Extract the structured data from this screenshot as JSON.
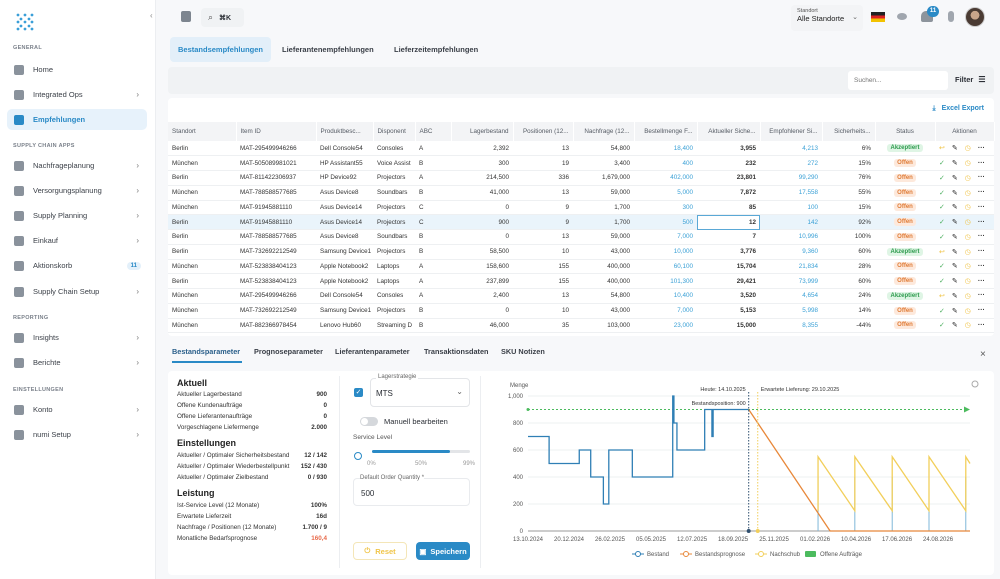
{
  "sidebar": {
    "sections": [
      "GENERAL",
      "SUPPLY CHAIN APPS",
      "REPORTING",
      "EINSTELLUNGEN"
    ],
    "items": [
      {
        "label": "Home",
        "icon": "home-icon"
      },
      {
        "label": "Integrated Ops",
        "icon": "ops-icon",
        "chevron": true
      },
      {
        "label": "Empfehlungen",
        "icon": "recommendations-icon",
        "active": true
      },
      {
        "label": "Nachfrageplanung",
        "icon": "demand-icon",
        "chevron": true
      },
      {
        "label": "Versorgungsplanung",
        "icon": "supply-icon",
        "chevron": true
      },
      {
        "label": "Supply Planning",
        "icon": "planning-icon",
        "chevron": true
      },
      {
        "label": "Einkauf",
        "icon": "purchase-icon",
        "chevron": true
      },
      {
        "label": "Aktionskorb",
        "icon": "basket-icon",
        "badge": "11"
      },
      {
        "label": "Supply Chain Setup",
        "icon": "globe-icon",
        "chevron": true
      },
      {
        "label": "Insights",
        "icon": "insights-icon",
        "chevron": true
      },
      {
        "label": "Berichte",
        "icon": "reports-icon",
        "chevron": true
      },
      {
        "label": "Konto",
        "icon": "account-icon",
        "chevron": true
      },
      {
        "label": "numi Setup",
        "icon": "setup-icon",
        "chevron": true
      }
    ]
  },
  "topbar": {
    "search_shortcut": "⌘K",
    "location_label": "Standort",
    "location_value": "Alle Standorte",
    "notification_count": "11"
  },
  "tabs": [
    "Bestandsempfehlungen",
    "Lieferantenempfehlungen",
    "Lieferzeitempfehlungen"
  ],
  "filterbar": {
    "search_placeholder": "Suchen...",
    "filter_label": "Filter"
  },
  "export_label": "Excel Export",
  "table": {
    "columns": [
      "Standort",
      "Item ID",
      "Produktbesc...",
      "Disponent",
      "ABC",
      "Lagerbestand",
      "Positionen (12...",
      "Nachfrage (12...",
      "Bestellmenge F...",
      "Aktueller Siche...",
      "Empfohlener Si...",
      "Sicherheits...",
      "Status",
      "Aktionen"
    ],
    "rows": [
      [
        "Berlin",
        "MAT-295499946266",
        "Dell Console54",
        "Consoles",
        "A",
        "2,392",
        "13",
        "54,800",
        "18,400",
        "3,955",
        "4,213",
        "6%",
        "Akzeptiert"
      ],
      [
        "München",
        "MAT-505089981021",
        "HP Assistant55",
        "Voice Assist",
        "B",
        "300",
        "19",
        "3,400",
        "400",
        "232",
        "272",
        "15%",
        "Offen"
      ],
      [
        "Berlin",
        "MAT-811422306937",
        "HP Device92",
        "Projectors",
        "A",
        "214,500",
        "336",
        "1,679,000",
        "402,000",
        "23,801",
        "99,290",
        "76%",
        "Offen"
      ],
      [
        "München",
        "MAT-788588577685",
        "Asus Device8",
        "Soundbars",
        "B",
        "41,000",
        "13",
        "59,000",
        "5,000",
        "7,872",
        "17,558",
        "55%",
        "Offen"
      ],
      [
        "München",
        "MAT-91945881110",
        "Asus Device14",
        "Projectors",
        "C",
        "0",
        "9",
        "1,700",
        "300",
        "85",
        "100",
        "15%",
        "Offen"
      ],
      [
        "Berlin",
        "MAT-91945881110",
        "Asus Device14",
        "Projectors",
        "C",
        "900",
        "9",
        "1,700",
        "500",
        "12",
        "142",
        "92%",
        "Offen"
      ],
      [
        "Berlin",
        "MAT-788588577685",
        "Asus Device8",
        "Soundbars",
        "B",
        "0",
        "13",
        "59,000",
        "7,000",
        "7",
        "10,996",
        "100%",
        "Offen"
      ],
      [
        "Berlin",
        "MAT-732692212549",
        "Samsung Device1",
        "Projectors",
        "B",
        "58,500",
        "10",
        "43,000",
        "10,000",
        "3,776",
        "9,360",
        "60%",
        "Akzeptiert"
      ],
      [
        "München",
        "MAT-523838404123",
        "Apple Notebook2",
        "Laptops",
        "A",
        "158,600",
        "155",
        "400,000",
        "60,100",
        "15,704",
        "21,834",
        "28%",
        "Offen"
      ],
      [
        "Berlin",
        "MAT-523838404123",
        "Apple Notebook2",
        "Laptops",
        "A",
        "237,899",
        "155",
        "400,000",
        "101,300",
        "29,421",
        "73,999",
        "60%",
        "Offen"
      ],
      [
        "München",
        "MAT-295499946266",
        "Dell Console54",
        "Consoles",
        "A",
        "2,400",
        "13",
        "54,800",
        "10,400",
        "3,520",
        "4,654",
        "24%",
        "Akzeptiert"
      ],
      [
        "München",
        "MAT-732692212549",
        "Samsung Device1",
        "Projectors",
        "B",
        "0",
        "10",
        "43,000",
        "7,000",
        "5,153",
        "5,998",
        "14%",
        "Offen"
      ],
      [
        "München",
        "MAT-882366978454",
        "Lenovo Hub60",
        "Streaming D",
        "B",
        "46,000",
        "35",
        "103,000",
        "23,000",
        "15,000",
        "8,355",
        "-44%",
        "Offen"
      ]
    ],
    "selected_row": 5
  },
  "detail_tabs": [
    "Bestandsparameter",
    "Prognoseparameter",
    "Lieferantenparameter",
    "Transaktionsdaten",
    "SKU Notizen"
  ],
  "params": {
    "aktuell": {
      "title": "Aktuell",
      "rows": [
        [
          "Aktueller Lagerbestand",
          "900"
        ],
        [
          "Offene Kundenaufträge",
          "0"
        ],
        [
          "Offene Lieferantenaufträge",
          "0"
        ],
        [
          "Vorgeschlagene Liefermenge",
          "2.000"
        ]
      ]
    },
    "einstellungen": {
      "title": "Einstellungen",
      "rows": [
        [
          "Aktueller / Optimaler Sicherheitsbestand",
          "12 / 142"
        ],
        [
          "Aktueller / Optimaler Wiederbestellpunkt",
          "152 / 430"
        ],
        [
          "Aktueller / Optimaler Zielbestand",
          "0 / 930"
        ]
      ]
    },
    "leistung": {
      "title": "Leistung",
      "rows": [
        [
          "Ist-Service Level (12 Monate)",
          "100%"
        ],
        [
          "Erwartete Lieferzeit",
          "16d"
        ],
        [
          "Nachfrage / Positionen (12 Monate)",
          "1.700 / 9"
        ],
        [
          "Monatliche Bedarfsprognose",
          "160,4"
        ]
      ]
    }
  },
  "form": {
    "strategy_label": "Lagerstrategie",
    "strategy_value": "MTS",
    "strategy_checked": true,
    "manual_label": "Manuell bearbeiten",
    "manual_on": false,
    "service_label": "Service Level",
    "service_level_percent": 80,
    "service_ticks": [
      "0%",
      "50%",
      "99%"
    ],
    "doq_label": "Default Order Quantity *",
    "doq_value": "500",
    "reset_label": "Reset",
    "save_label": "Speichern"
  },
  "chart_data": {
    "type": "line",
    "ylabel": "Menge",
    "ylim": [
      0,
      1000
    ],
    "yticks": [
      "0",
      "200",
      "400",
      "600",
      "800",
      "1,000"
    ],
    "xlim": [
      "13.10.2024",
      "16.10.2026"
    ],
    "xticks": [
      "13.10.2024",
      "20.12.2024",
      "26.02.2025",
      "05.05.2025",
      "12.07.2025",
      "18.09.2025",
      "25.11.2025",
      "01.02.2026",
      "10.04.2026",
      "17.06.2026",
      "24.08.2026"
    ],
    "grid": true,
    "legend_position": "bottom",
    "annotations": [
      "Heute: 14.10.2025",
      "Erwartete Lieferung: 29.10.2025",
      "Bestandsposition: 900"
    ],
    "markers": {
      "today": "14.10.2025",
      "expected_delivery": "29.10.2025"
    },
    "reference_line": 900,
    "colors": {
      "Bestand": "#2f7fb5",
      "Bestandsprognose": "#e8883a",
      "Nachschub": "#f2cf5b",
      "Offene Aufträge": "#4cbb5e",
      "reference": "#4cbb5e"
    },
    "series": [
      {
        "name": "Bestand",
        "step": true,
        "points": [
          [
            "13.10.2024",
            700
          ],
          [
            "17.11.2024",
            500
          ],
          [
            "06.01.2025",
            600
          ],
          [
            "25.01.2025",
            400
          ],
          [
            "15.02.2025",
            200
          ],
          [
            "24.02.2025",
            600
          ],
          [
            "04.04.2025",
            400
          ],
          [
            "10.06.2025",
            1000
          ],
          [
            "12.06.2025",
            800
          ],
          [
            "17.06.2025",
            600
          ],
          [
            "02.08.2025",
            900
          ],
          [
            "14.08.2025",
            700
          ],
          [
            "16.08.2025",
            900
          ],
          [
            "14.10.2025",
            900
          ]
        ]
      },
      {
        "name": "Bestandsprognose",
        "points": [
          [
            "14.10.2025",
            900
          ],
          [
            "26.02.2026",
            0
          ],
          [
            "16.10.2026",
            0
          ]
        ]
      },
      {
        "name": "Nachschub",
        "points": [
          [
            "06.02.2026",
            150
          ],
          [
            "06.02.2026",
            550
          ],
          [
            "08.04.2026",
            150
          ],
          [
            "08.04.2026",
            550
          ],
          [
            "09.06.2026",
            150
          ],
          [
            "09.06.2026",
            550
          ],
          [
            "09.08.2026",
            150
          ],
          [
            "09.08.2026",
            550
          ],
          [
            "09.10.2026",
            150
          ],
          [
            "09.10.2026",
            550
          ],
          [
            "16.10.2026",
            500
          ]
        ]
      },
      {
        "name": "Offene Aufträge",
        "bars": [
          [
            "06.02.2026",
            400
          ],
          [
            "08.04.2026",
            400
          ],
          [
            "09.06.2026",
            400
          ],
          [
            "09.08.2026",
            400
          ],
          [
            "09.10.2026",
            400
          ]
        ]
      }
    ]
  }
}
